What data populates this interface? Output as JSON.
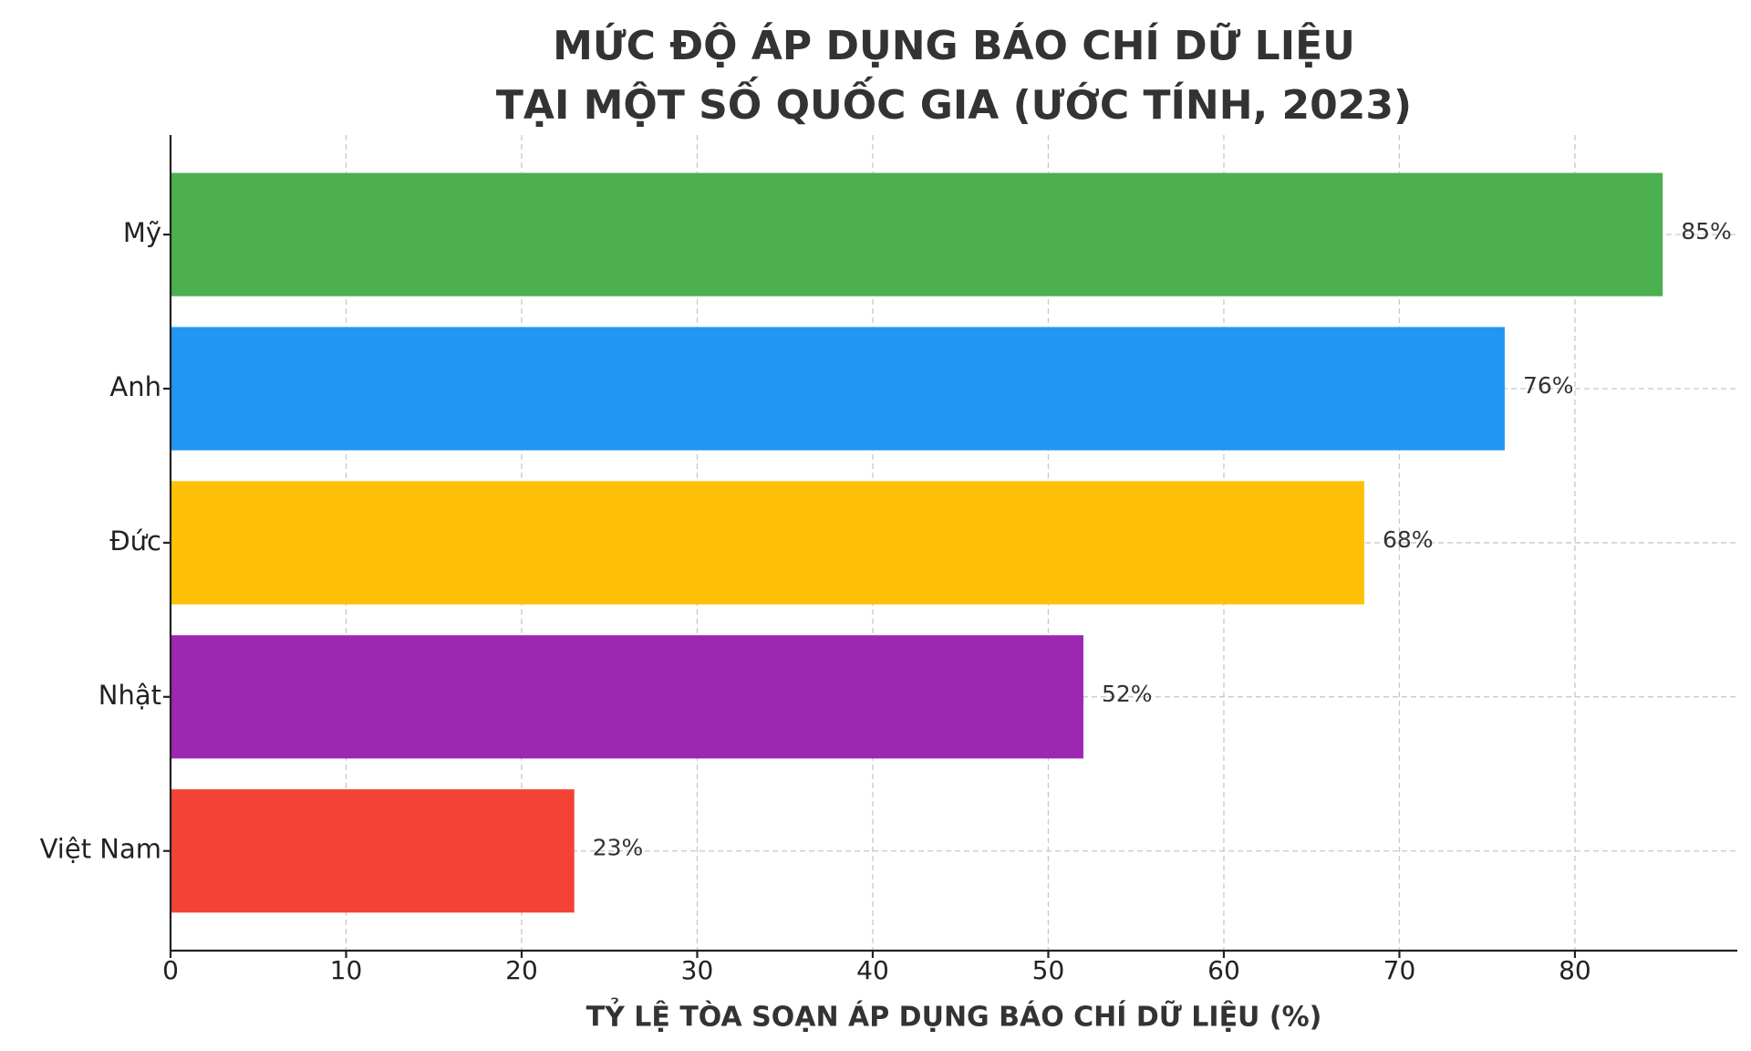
{
  "chart_data": {
    "type": "bar",
    "orientation": "horizontal",
    "title": [
      "MỨC ĐỘ ÁP DỤNG BÁO CHÍ DỮ LIỆU",
      "TẠI MỘT SỐ QUỐC GIA (ƯỚC TÍNH, 2023)"
    ],
    "x_label": "TỶ LỆ TÒA SOẠN ÁP DỤNG BÁO CHÍ DỮ LIỆU (%)",
    "categories": [
      "Mỹ",
      "Anh",
      "Đức",
      "Nhật",
      "Việt Nam"
    ],
    "values": [
      85,
      76,
      68,
      52,
      23
    ],
    "value_labels": [
      "85%",
      "76%",
      "68%",
      "52%",
      "23%"
    ],
    "colors": [
      "#4caf50",
      "#2196f3",
      "#ffc107",
      "#9c27b0",
      "#f44336"
    ],
    "xlim": [
      0,
      89.25
    ],
    "xticks": [
      0,
      10,
      20,
      30,
      40,
      50,
      60,
      70,
      80
    ],
    "grid": true
  }
}
